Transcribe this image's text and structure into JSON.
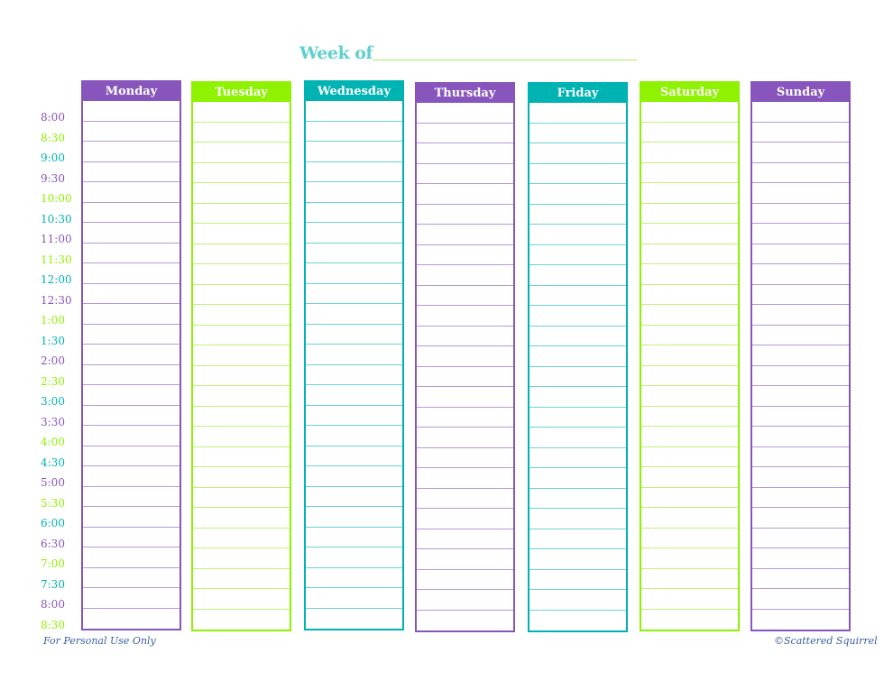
{
  "title": "Week of",
  "colors": {
    "purple": "#8755bb",
    "green": "#8ef200",
    "teal": "#00b3b3"
  },
  "days": [
    {
      "label": "Monday",
      "color": "purple"
    },
    {
      "label": "Tuesday",
      "color": "green"
    },
    {
      "label": "Wednesday",
      "color": "teal"
    },
    {
      "label": "Thursday",
      "color": "purple"
    },
    {
      "label": "Friday",
      "color": "teal"
    },
    {
      "label": "Saturday",
      "color": "green"
    },
    {
      "label": "Sunday",
      "color": "purple"
    }
  ],
  "times": [
    "8:00",
    "8:30",
    "9:00",
    "9:30",
    "10:00",
    "10:30",
    "11:00",
    "11:30",
    "12:00",
    "12:30",
    "1:00",
    "1:30",
    "2:00",
    "2:30",
    "3:00",
    "3:30",
    "4:00",
    "4:30",
    "5:00",
    "5:30",
    "6:00",
    "6:30",
    "7:00",
    "7:30",
    "8:00",
    "8:30"
  ],
  "footer": {
    "left": "For Personal Use Only",
    "right": "©Scattered Squirrel"
  }
}
